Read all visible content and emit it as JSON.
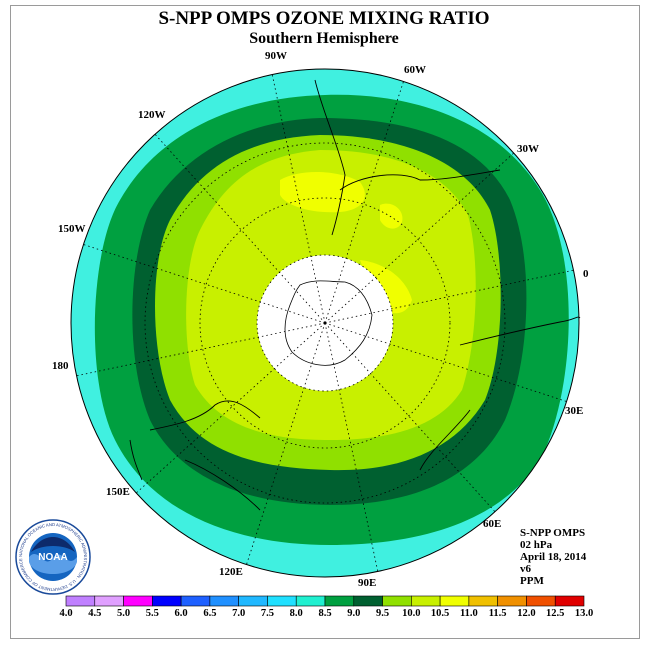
{
  "title": "S-NPP OMPS OZONE MIXING RATIO",
  "subtitle": "Southern Hemisphere",
  "longitude_labels": [
    "90W",
    "60W",
    "120W",
    "30W",
    "150W",
    "0",
    "180",
    "30E",
    "150E",
    "60E",
    "120E",
    "90E"
  ],
  "info": {
    "instrument": "S-NPP OMPS",
    "pressure": "02 hPa",
    "date": "April 18, 2014",
    "version": "v6",
    "units": "PPM"
  },
  "logo": {
    "text": "NOAA",
    "ring_text": "NATIONAL OCEANIC AND ATMOSPHERIC ADMINISTRATION · U.S. DEPARTMENT OF COMMERCE"
  },
  "colorbar": {
    "labels": [
      "4.0",
      "4.5",
      "5.0",
      "5.5",
      "6.0",
      "6.5",
      "7.0",
      "7.5",
      "8.0",
      "8.5",
      "9.0",
      "9.5",
      "10.0",
      "10.5",
      "11.0",
      "11.5",
      "12.0",
      "12.5",
      "13.0"
    ],
    "colors": [
      "#c080ff",
      "#e0a0ff",
      "#ff00ff",
      "#0000ff",
      "#1e60ff",
      "#2090ff",
      "#20b8ff",
      "#20e0ff",
      "#20f0d0",
      "#00a040",
      "#006030",
      "#90e000",
      "#c8f000",
      "#f0ff00",
      "#f0c000",
      "#f09000",
      "#f05000",
      "#e00000",
      "#a0522d"
    ]
  },
  "legend_colors": {
    "cyan": "#40f0e0",
    "green_mid": "#00a040",
    "green_dark": "#006030",
    "yellowgreen": "#c8f000",
    "lime": "#90e000",
    "yellow": "#f0ff00"
  }
}
